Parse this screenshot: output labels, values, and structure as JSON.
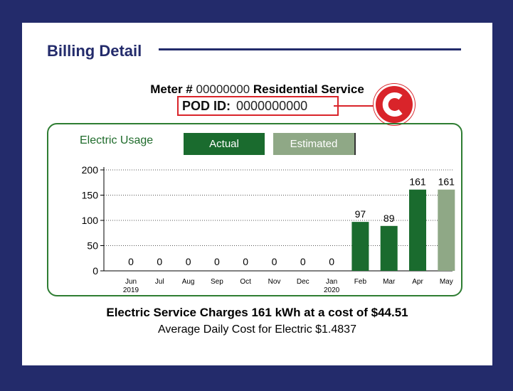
{
  "header": {
    "title": "Billing Detail"
  },
  "meter": {
    "label": "Meter #",
    "number": "00000000",
    "service": "Residential Service"
  },
  "pod": {
    "label": "POD ID:",
    "value": "0000000000"
  },
  "badge": {
    "letter": "C",
    "color": "#d9242a"
  },
  "usage": {
    "title": "Electric Usage",
    "legend_actual": "Actual",
    "legend_estimated": "Estimated",
    "actual_color": "#1a6b2e",
    "estimated_color": "#8fa886"
  },
  "chart_data": {
    "type": "bar",
    "categories": [
      "Jun",
      "Jul",
      "Aug",
      "Sep",
      "Oct",
      "Nov",
      "Dec",
      "Jan",
      "Feb",
      "Mar",
      "Apr",
      "May"
    ],
    "category_sublabels": [
      "2019",
      "",
      "",
      "",
      "",
      "",
      "",
      "2020",
      "",
      "",
      "",
      ""
    ],
    "values": [
      0,
      0,
      0,
      0,
      0,
      0,
      0,
      0,
      97,
      89,
      161,
      161
    ],
    "kind": [
      "actual",
      "actual",
      "actual",
      "actual",
      "actual",
      "actual",
      "actual",
      "actual",
      "actual",
      "actual",
      "actual",
      "estimated"
    ],
    "yticks": [
      0,
      50,
      100,
      150,
      200
    ],
    "ylim": [
      0,
      200
    ],
    "grid": true
  },
  "footer": {
    "charges": "Electric Service Charges 161 kWh at a cost of $44.51",
    "average": "Average Daily Cost for Electric $1.4837"
  }
}
